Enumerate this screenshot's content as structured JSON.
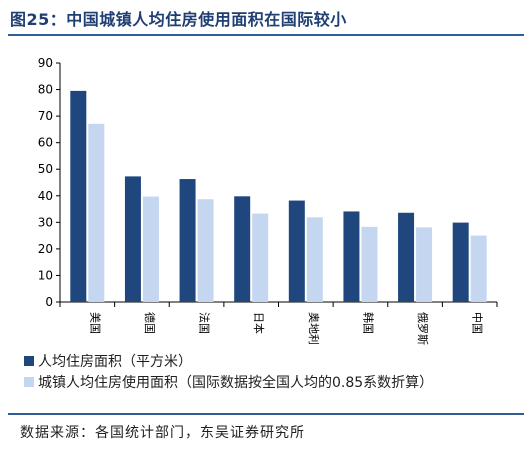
{
  "title": "图25：中国城镇人均住房使用面积在国际较小",
  "source": "数据来源：各国统计部门，东吴证券研究所",
  "colors": {
    "series1": "#1f477e",
    "series2": "#c4d6f0",
    "rule": "#2d5f96"
  },
  "chart_data": {
    "type": "bar",
    "categories": [
      "美国",
      "德国",
      "法国",
      "日本",
      "奥地利",
      "韩国",
      "俄罗斯",
      "中国"
    ],
    "series": [
      {
        "name": "人均住房面积（平方米）",
        "values": [
          79.5,
          47.3,
          46.3,
          39.8,
          38.2,
          34.1,
          33.6,
          29.9
        ]
      },
      {
        "name": "城镇人均住房使用面积（国际数据按全国人均的0.85系数折算）",
        "values": [
          67.1,
          39.7,
          38.7,
          33.3,
          31.9,
          28.3,
          28.1,
          25.0
        ]
      }
    ],
    "ylim": [
      0,
      90
    ],
    "yticks": [
      0,
      10,
      20,
      30,
      40,
      50,
      60,
      70,
      80,
      90
    ],
    "xlabel": "",
    "ylabel": "",
    "legend": "bottom-left",
    "grid": false
  }
}
